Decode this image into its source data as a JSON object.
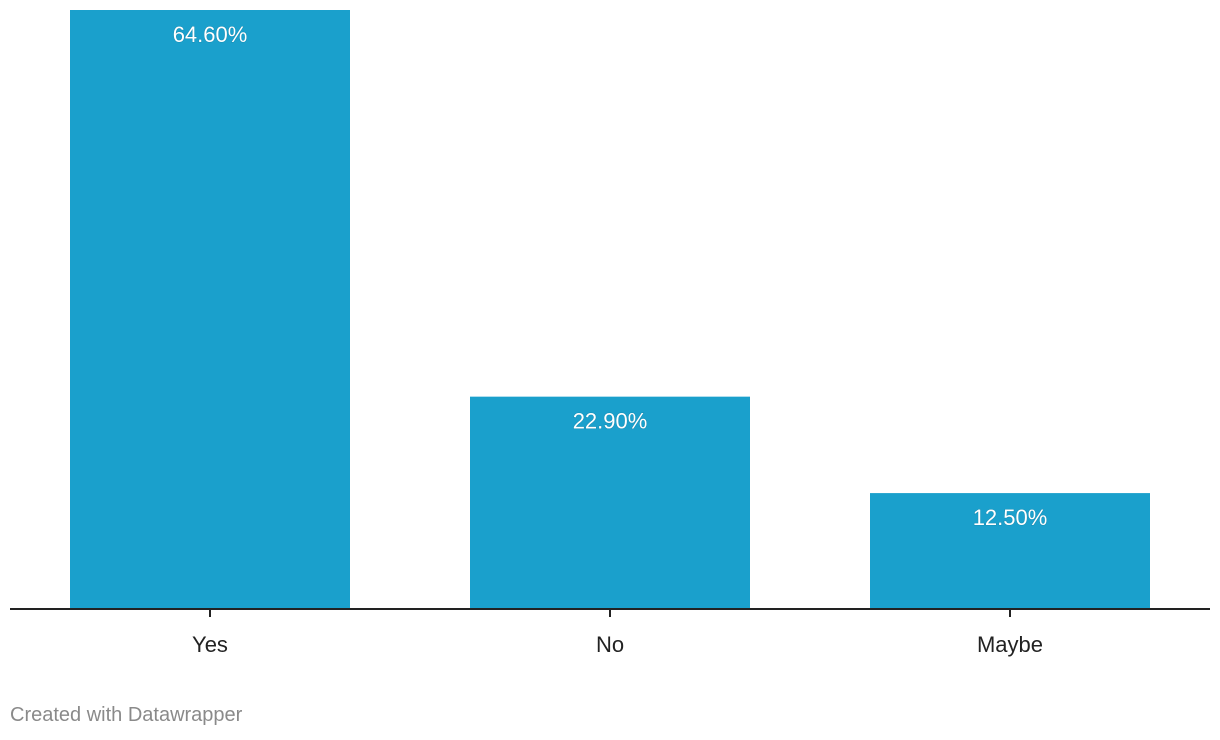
{
  "chart_data": {
    "type": "bar",
    "categories": [
      "Yes",
      "No",
      "Maybe"
    ],
    "values": [
      64.6,
      22.9,
      12.5
    ],
    "value_labels": [
      "64.60%",
      "22.90%",
      "12.50%"
    ],
    "title": "",
    "xlabel": "",
    "ylabel": "",
    "ylim": [
      0,
      64.6
    ],
    "grid": false,
    "legend": "none",
    "bar_color": "#1aa0cc",
    "axis_color": "#222222"
  },
  "footer": {
    "credit": "Created with Datawrapper"
  }
}
